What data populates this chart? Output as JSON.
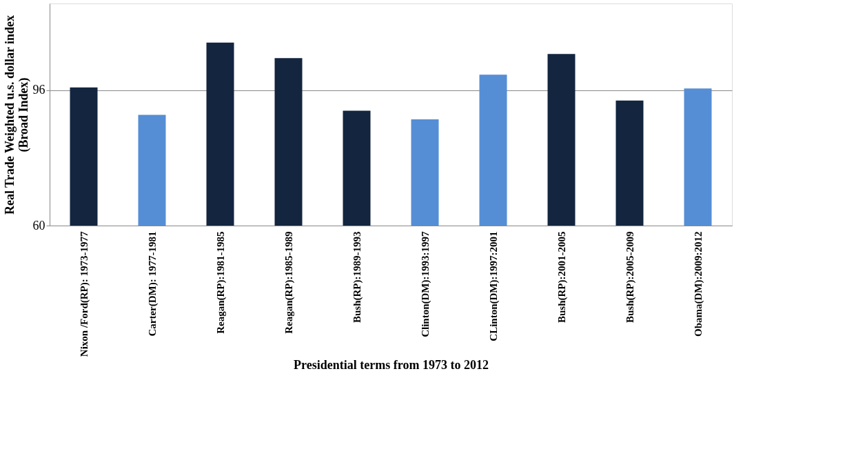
{
  "chart_data": {
    "type": "bar",
    "xlabel": "Presidential terms from 1973 to 2012",
    "ylabel": "Real Trade Weighted u.s. dollar index\n(Broad Index)",
    "categories": [
      "Nixon /Ford(RP): 1973-1977",
      "Carter(DM): 1977-1981",
      "Reagan(RP):1981-1985",
      "Reagan(RP):1985-1989",
      "Bush(RP):1989-1993",
      "Clinton(DM):1993:1997",
      "CLinton(DM):1997:2001",
      "Bush(RP):2001-2005",
      "Bush(RP):2005-2009",
      "Obama(DM):2009:2012"
    ],
    "values": [
      96.7,
      89.4,
      108.6,
      104.5,
      90.5,
      88.2,
      100.1,
      105.6,
      93.2,
      96.4
    ],
    "colors": [
      "#13253f",
      "#558ed5",
      "#13253f",
      "#13253f",
      "#13253f",
      "#558ed5",
      "#558ed5",
      "#13253f",
      "#13253f",
      "#558ed5"
    ],
    "ylim": [
      60,
      119
    ],
    "yticks": [
      60,
      96
    ],
    "grid": "y"
  }
}
